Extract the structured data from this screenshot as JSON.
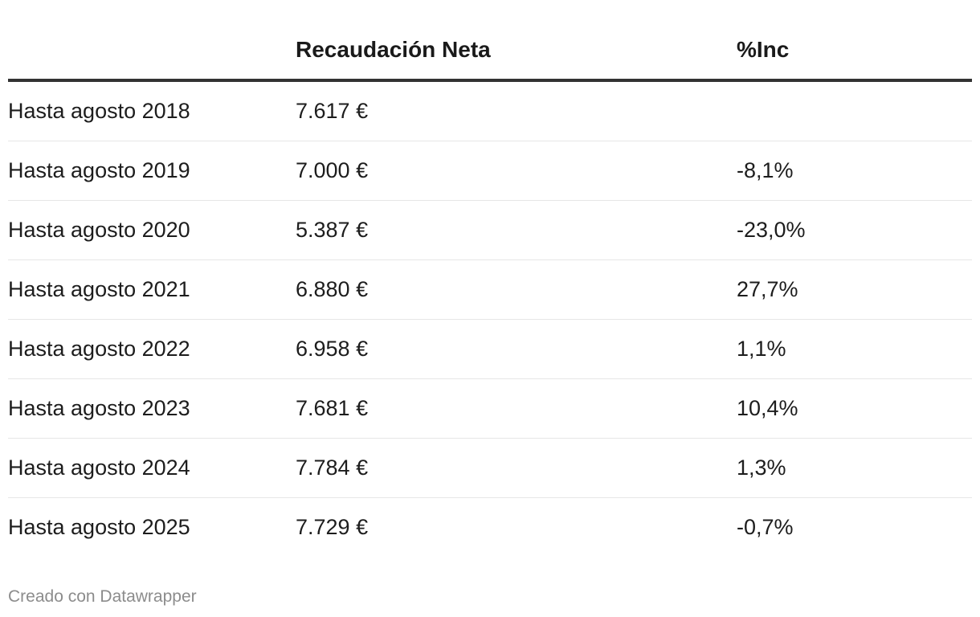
{
  "chart_data": {
    "type": "table",
    "columns": [
      "",
      "Recaudación Neta",
      "%Inc"
    ],
    "rows": [
      {
        "period": "Hasta agosto 2018",
        "recaudacion": "7.617 €",
        "inc": ""
      },
      {
        "period": "Hasta agosto 2019",
        "recaudacion": "7.000 €",
        "inc": "-8,1%"
      },
      {
        "period": "Hasta agosto 2020",
        "recaudacion": "5.387 €",
        "inc": "-23,0%"
      },
      {
        "period": "Hasta agosto 2021",
        "recaudacion": "6.880 €",
        "inc": "27,7%"
      },
      {
        "period": "Hasta agosto 2022",
        "recaudacion": "6.958 €",
        "inc": "1,1%"
      },
      {
        "period": "Hasta agosto 2023",
        "recaudacion": "7.681 €",
        "inc": "10,4%"
      },
      {
        "period": "Hasta agosto 2024",
        "recaudacion": "7.784 €",
        "inc": "1,3%"
      },
      {
        "period": "Hasta agosto 2025",
        "recaudacion": "7.729 €",
        "inc": "-0,7%"
      }
    ]
  },
  "footer": {
    "credit": "Creado con Datawrapper"
  },
  "colors": {
    "text": "#1d1d1d",
    "header_rule": "#333333",
    "row_divider": "#e6e6e6",
    "footer_text": "#8c8c8c"
  }
}
